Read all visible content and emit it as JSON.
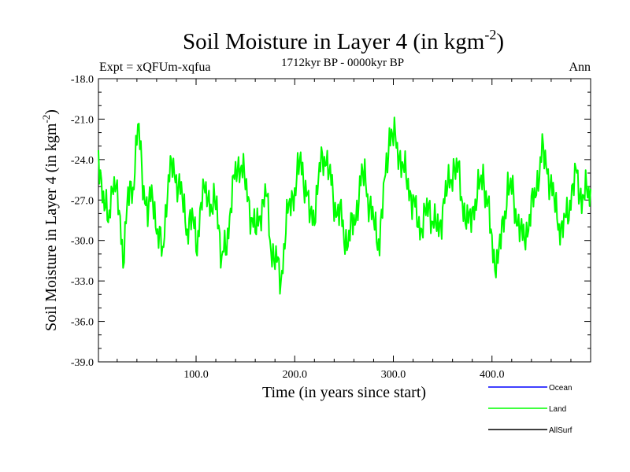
{
  "chart_data": {
    "type": "line",
    "title": "Soil Moisture in Layer 4 (in kgm",
    "title_sup": "-2",
    "title_close": ")",
    "subtitle": "1712kyr BP - 0000kyr BP",
    "expt_label": "Expt = xQFUm-xqfua",
    "season_label": "Ann",
    "xlabel": "Time (in years since start)",
    "ylabel": "Soil Moisture in Layer 4 (in kgm",
    "ylabel_sup": "-2",
    "ylabel_close": ")",
    "xlim": [
      1,
      500
    ],
    "ylim": [
      -39.0,
      -18.0
    ],
    "x_ticks": [
      100,
      200,
      300,
      400
    ],
    "x_tick_labels": [
      "100.0",
      "200.0",
      "300.0",
      "400.0"
    ],
    "y_ticks": [
      -18,
      -21,
      -24,
      -27,
      -30,
      -33,
      -36,
      -39
    ],
    "y_tick_labels": [
      "-18.0",
      "-21.0",
      "-24.0",
      "-27.0",
      "-30.0",
      "-33.0",
      "-36.0",
      "-39.0"
    ],
    "legend": [
      {
        "name": "Ocean",
        "color": "#0000ff"
      },
      {
        "name": "Land",
        "color": "#00ff00"
      },
      {
        "name": "AllSurf",
        "color": "#000000"
      }
    ],
    "series": [
      {
        "name": "Land",
        "color": "#00ff00",
        "x_start": 1,
        "x_step": 5,
        "values": [
          -24.0,
          -26.5,
          -29.0,
          -25.0,
          -27.5,
          -31.0,
          -27.0,
          -26.0,
          -21.5,
          -25.5,
          -28.0,
          -26.5,
          -29.5,
          -31.0,
          -26.0,
          -24.5,
          -25.5,
          -27.0,
          -29.0,
          -28.5,
          -30.0,
          -27.0,
          -26.0,
          -28.0,
          -27.0,
          -31.5,
          -30.5,
          -26.5,
          -25.0,
          -24.0,
          -26.5,
          -28.0,
          -29.5,
          -27.5,
          -26.5,
          -30.5,
          -31.5,
          -33.0,
          -29.0,
          -27.0,
          -26.0,
          -24.0,
          -26.0,
          -28.5,
          -27.5,
          -24.5,
          -23.5,
          -25.5,
          -27.5,
          -28.0,
          -30.0,
          -29.5,
          -28.5,
          -26.0,
          -25.0,
          -27.5,
          -29.0,
          -30.0,
          -26.0,
          -22.0,
          -22.5,
          -23.5,
          -25.0,
          -26.0,
          -27.5,
          -29.0,
          -28.5,
          -27.5,
          -28.5,
          -29.5,
          -27.0,
          -26.0,
          -24.5,
          -25.0,
          -27.5,
          -29.0,
          -27.5,
          -26.5,
          -25.0,
          -27.5,
          -31.0,
          -31.5,
          -29.0,
          -26.0,
          -26.5,
          -28.5,
          -30.0,
          -29.0,
          -27.5,
          -25.5,
          -23.5,
          -24.5,
          -26.5,
          -28.0,
          -29.5,
          -28.0,
          -26.5,
          -25.0,
          -27.0,
          -26.5
        ]
      }
    ]
  }
}
